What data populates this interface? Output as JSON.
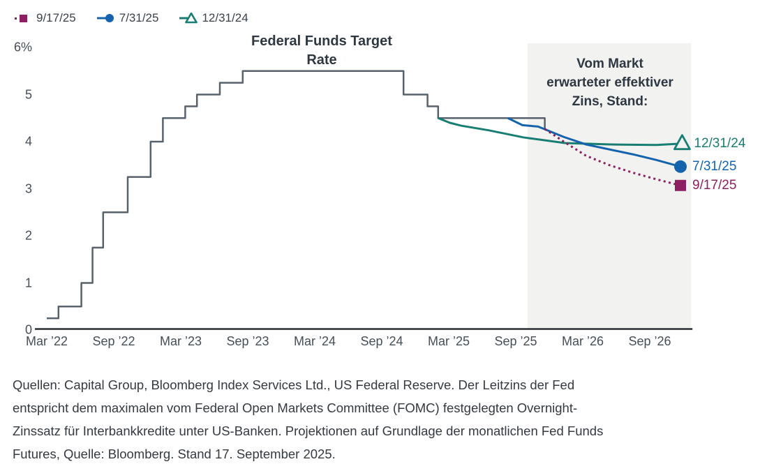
{
  "legend": {
    "items": [
      {
        "label": "9/17/25",
        "marker": "square-dotted",
        "color": "#8d2060"
      },
      {
        "label": "7/31/25",
        "marker": "circle-line",
        "color": "#1563ac"
      },
      {
        "label": "12/31/24",
        "marker": "triangle-line",
        "color": "#187d72"
      }
    ]
  },
  "chart_data": {
    "type": "line",
    "title": "Federal Funds Target Rate",
    "title_lines": [
      "Federal Funds Target",
      "Rate"
    ],
    "annotation": "Vom Markt erwarteter effektiver Zins, Stand:",
    "annotation_lines": [
      "Vom Markt",
      "erwarteter effektiver",
      "Zins, Stand:"
    ],
    "ylabel": "",
    "xlabel": "",
    "ylim": [
      0,
      6
    ],
    "grid": false,
    "y_axis": {
      "tick_labels": [
        "6%",
        "5",
        "4",
        "3",
        "2",
        "1",
        "0"
      ],
      "tick_values": [
        6,
        5,
        4,
        3,
        2,
        1,
        0
      ]
    },
    "x_axis": {
      "tick_labels": [
        "Mar ’22",
        "Sep ’22",
        "Mar ’23",
        "Sep ’23",
        "Mar ’24",
        "Sep ’24",
        "Mar ’25",
        "Sep ’25",
        "Mar ’26",
        "Sep ’26"
      ],
      "tick_months": [
        0,
        6,
        12,
        18,
        24,
        30,
        36,
        42,
        48,
        54
      ]
    },
    "projection_region": {
      "label": "Vom Markt erwarteter effektiver Zins, Stand:",
      "start_month": 43.05,
      "end_month": 57.7,
      "fill": "#f2f2f1"
    },
    "series": [
      {
        "name": "Federal Funds Target Rate",
        "color": "#57626c",
        "style": "step",
        "width": 2.5,
        "marker": "none",
        "points": [
          [
            0,
            0.25
          ],
          [
            1.05,
            0.25
          ],
          [
            1.05,
            0.5
          ],
          [
            3.1,
            0.5
          ],
          [
            3.1,
            1.0
          ],
          [
            4.1,
            1.0
          ],
          [
            4.1,
            1.75
          ],
          [
            5.05,
            1.75
          ],
          [
            5.05,
            2.5
          ],
          [
            7.25,
            2.5
          ],
          [
            7.25,
            3.25
          ],
          [
            9.3,
            3.25
          ],
          [
            9.3,
            4.0
          ],
          [
            10.4,
            4.0
          ],
          [
            10.4,
            4.5
          ],
          [
            12.4,
            4.5
          ],
          [
            12.4,
            4.75
          ],
          [
            13.45,
            4.75
          ],
          [
            13.45,
            5.0
          ],
          [
            15.5,
            5.0
          ],
          [
            15.5,
            5.25
          ],
          [
            17.55,
            5.25
          ],
          [
            17.55,
            5.5
          ],
          [
            31.95,
            5.5
          ],
          [
            31.95,
            5.0
          ],
          [
            34.1,
            5.0
          ],
          [
            34.1,
            4.75
          ],
          [
            35.05,
            4.75
          ],
          [
            35.05,
            4.5
          ],
          [
            44.6,
            4.5
          ],
          [
            44.6,
            4.25
          ]
        ]
      },
      {
        "name": "12/31/24",
        "color": "#187d72",
        "style": "solid",
        "width": 3,
        "marker": "triangle",
        "end_label": "12/31/24",
        "points": [
          [
            35.05,
            4.5
          ],
          [
            36.1,
            4.4
          ],
          [
            37.1,
            4.34
          ],
          [
            39.6,
            4.24
          ],
          [
            42.7,
            4.09
          ],
          [
            46.4,
            3.97
          ],
          [
            50.5,
            3.94
          ],
          [
            54.6,
            3.93
          ],
          [
            56.9,
            3.96
          ]
        ]
      },
      {
        "name": "7/31/25",
        "color": "#1563ac",
        "style": "solid",
        "width": 3,
        "marker": "circle",
        "end_label": "7/31/25",
        "points": [
          [
            41.3,
            4.5
          ],
          [
            42.6,
            4.35
          ],
          [
            44.0,
            4.32
          ],
          [
            46.3,
            4.1
          ],
          [
            48.3,
            3.94
          ],
          [
            50.5,
            3.83
          ],
          [
            52.5,
            3.73
          ],
          [
            54.6,
            3.61
          ],
          [
            56.75,
            3.47
          ]
        ]
      },
      {
        "name": "9/17/25",
        "color": "#8d2060",
        "style": "dotted",
        "width": 3,
        "marker": "square",
        "end_label": "9/17/25",
        "points": [
          [
            44.6,
            4.27
          ],
          [
            46.3,
            4.0
          ],
          [
            48.3,
            3.7
          ],
          [
            50.4,
            3.5
          ],
          [
            52.5,
            3.34
          ],
          [
            54.6,
            3.2
          ],
          [
            56.75,
            3.07
          ]
        ]
      }
    ],
    "axis_color": "#272c31"
  },
  "footer": {
    "lines": [
      "Quellen: Capital Group, Bloomberg Index Services Ltd., US Federal Reserve. Der Leitzins der Fed",
      "entspricht dem maximalen vom Federal Open Markets Committee (FOMC) festgelegten Overnight-",
      "Zinssatz für Interbankkredite unter US-Banken. Projektionen auf Grundlage der monatlichen Fed Funds",
      "Futures, Quelle: Bloomberg. Stand 17. September 2025."
    ]
  }
}
